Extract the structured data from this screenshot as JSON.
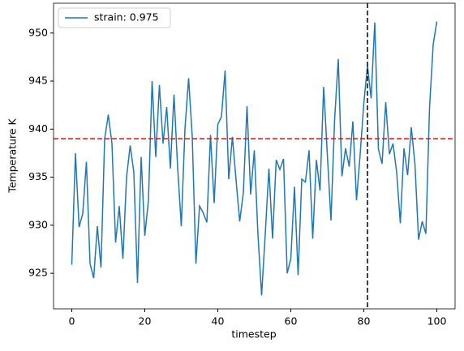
{
  "chart_data": {
    "type": "line",
    "xlabel": "timestep",
    "ylabel": "Temperature K",
    "x": [
      0,
      1,
      2,
      3,
      4,
      5,
      6,
      7,
      8,
      9,
      10,
      11,
      12,
      13,
      14,
      15,
      16,
      17,
      18,
      19,
      20,
      21,
      22,
      23,
      24,
      25,
      26,
      27,
      28,
      29,
      30,
      31,
      32,
      33,
      34,
      35,
      36,
      37,
      38,
      39,
      40,
      41,
      42,
      43,
      44,
      45,
      46,
      47,
      48,
      49,
      50,
      51,
      52,
      53,
      54,
      55,
      56,
      57,
      58,
      59,
      60,
      61,
      62,
      63,
      64,
      65,
      66,
      67,
      68,
      69,
      70,
      71,
      72,
      73,
      74,
      75,
      76,
      77,
      78,
      79,
      80,
      81,
      82,
      83,
      84,
      85,
      86,
      87,
      88,
      89,
      90,
      91,
      92,
      93,
      94,
      95,
      96,
      97,
      98,
      99,
      100
    ],
    "series": [
      {
        "name": "strain: 0.975",
        "color": "#1f77b4",
        "values": [
          925.9,
          937.5,
          929.8,
          931.2,
          936.6,
          926,
          924.5,
          929.9,
          925.6,
          939,
          941.5,
          938.5,
          928.2,
          932,
          926.5,
          935,
          938.3,
          935.5,
          924,
          937.1,
          928.9,
          932.6,
          945,
          937.1,
          944.6,
          938.5,
          942.3,
          935.9,
          943.6,
          936,
          929.9,
          940,
          945.3,
          939.2,
          926,
          932,
          931.3,
          930.3,
          939.4,
          932.3,
          940.5,
          941.3,
          946.1,
          934.8,
          939.2,
          934.7,
          930.4,
          933.4,
          942.4,
          933.2,
          937.8,
          929,
          922.7,
          929.1,
          935.9,
          928.6,
          936.8,
          935.8,
          936.9,
          925,
          926.5,
          934,
          924.8,
          934.8,
          934.5,
          937.8,
          928.6,
          936.8,
          933.6,
          944.4,
          937.4,
          930.5,
          941,
          947.3,
          935.1,
          938,
          936.1,
          940.8,
          932.6,
          937.4,
          942.7,
          946.6,
          943.2,
          951.1,
          937.9,
          936.4,
          942.8,
          937.4,
          938.5,
          935.5,
          930.2,
          938,
          935.2,
          940.2,
          936.4,
          928.5,
          930.4,
          929.1,
          942.2,
          948.8,
          951.2
        ]
      }
    ],
    "hline": {
      "value": 939,
      "color": "#ff0000"
    },
    "vline": {
      "value": 81,
      "color": "#000000"
    },
    "xlim": [
      -5,
      105
    ],
    "ylim": [
      921.3,
      953.1
    ],
    "xticks": [
      0,
      20,
      40,
      60,
      80,
      100
    ],
    "yticks": [
      925,
      930,
      935,
      940,
      945,
      950
    ],
    "legend": "upper-left"
  }
}
